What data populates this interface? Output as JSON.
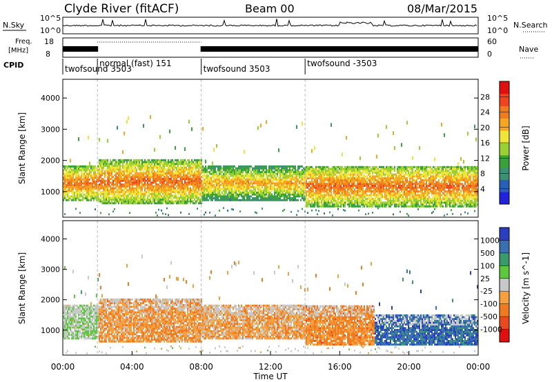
{
  "header": {
    "station": "Clyde River (fitACF)",
    "beam": "Beam 00",
    "date": "08/Mar/2015"
  },
  "nsky_panel": {
    "label": "N.Sky",
    "left_ticks": [
      "10^5",
      "10^0"
    ],
    "right_ticks": [
      "10^5",
      "10^0"
    ],
    "right_label": "N.Search"
  },
  "freq_panel": {
    "label_line1": "Freq.",
    "label_line2": "[MHz]",
    "left_ticks": [
      "18",
      "8"
    ],
    "right_ticks": [
      "60",
      "0"
    ],
    "right_label": "Nave"
  },
  "cpid": {
    "label": "CPID",
    "segments": [
      {
        "name": "twofsound 3503",
        "start_h": 0,
        "end_h": 2,
        "row": 2
      },
      {
        "name": "normal (fast) 151",
        "start_h": 2,
        "end_h": 8,
        "row": 1
      },
      {
        "name": "twofsound 3503",
        "start_h": 8,
        "end_h": 14,
        "row": 2
      },
      {
        "name": "twofsound -3503",
        "start_h": 14,
        "end_h": 24,
        "row": 1
      }
    ]
  },
  "power_panel": {
    "ylabel": "Slant Range [km]",
    "colorbar_label": "Power [dB]",
    "colorbar_ticks": [
      "28",
      "24",
      "20",
      "16",
      "12",
      "8",
      "4"
    ],
    "colors": [
      "#2222dd",
      "#2a5fb8",
      "#3d8f78",
      "#3aa23a",
      "#9ad033",
      "#f2e53a",
      "#f5a623",
      "#f07a1f",
      "#f04420",
      "#e01010"
    ]
  },
  "velocity_panel": {
    "ylabel": "Slant Range [km]",
    "colorbar_label": "Velocity [m s^-1]",
    "colorbar_ticks": [
      "1000",
      "500",
      "100",
      "25",
      "-25",
      "-100",
      "-500",
      "-1000"
    ],
    "colors": [
      "#2a3fc0",
      "#3a6fb0",
      "#3a9a6a",
      "#5cc840",
      "#c8c8c8",
      "#f5a040",
      "#f07a1f",
      "#e84a20",
      "#e01010"
    ]
  },
  "axes": {
    "y_ticks": [
      "4000",
      "3000",
      "2000",
      "1000"
    ],
    "x_ticks": [
      "00:00",
      "04:00",
      "08:00",
      "12:00",
      "16:00",
      "20:00",
      "00:00"
    ],
    "xlabel": "Time UT"
  },
  "chart_data": [
    {
      "type": "heatmap",
      "title": "Power",
      "xlabel": "Time UT",
      "ylabel": "Slant Range [km]",
      "xlim_hours": [
        0,
        24
      ],
      "ylim_km": [
        180,
        4600
      ],
      "colorbar": {
        "label": "Power [dB]",
        "range": [
          0,
          32
        ],
        "ticks": [
          4,
          8,
          12,
          16,
          20,
          24,
          28
        ]
      },
      "bands": [
        {
          "start_h": 0.0,
          "end_h": 2.0,
          "range_km": [
            700,
            1800
          ],
          "value_db": 26
        },
        {
          "start_h": 2.0,
          "end_h": 8.0,
          "range_km": [
            600,
            2000
          ],
          "value_db": 26
        },
        {
          "start_h": 8.0,
          "end_h": 14.0,
          "range_km": [
            700,
            1800
          ],
          "value_db": 22
        },
        {
          "start_h": 14.0,
          "end_h": 24.0,
          "range_km": [
            500,
            1800
          ],
          "value_db": 26
        }
      ]
    },
    {
      "type": "heatmap",
      "title": "Velocity",
      "xlabel": "Time UT",
      "ylabel": "Slant Range [km]",
      "xlim_hours": [
        0,
        24
      ],
      "ylim_km": [
        180,
        4600
      ],
      "colorbar": {
        "label": "Velocity [m s^-1]",
        "range": [
          -1000,
          1000
        ],
        "ticks": [
          1000,
          500,
          100,
          25,
          -25,
          -100,
          -500,
          -1000
        ]
      },
      "bands": [
        {
          "start_h": 0.0,
          "end_h": 2.0,
          "range_km": [
            700,
            1800
          ],
          "value_ms": 120
        },
        {
          "start_h": 2.0,
          "end_h": 8.0,
          "range_km": [
            600,
            2000
          ],
          "value_ms": -300
        },
        {
          "start_h": 8.0,
          "end_h": 14.0,
          "range_km": [
            700,
            1800
          ],
          "value_ms": -250
        },
        {
          "start_h": 14.0,
          "end_h": 18.0,
          "range_km": [
            500,
            1800
          ],
          "value_ms": -400
        },
        {
          "start_h": 18.0,
          "end_h": 24.0,
          "range_km": [
            500,
            1500
          ],
          "value_ms": 800
        }
      ]
    }
  ]
}
